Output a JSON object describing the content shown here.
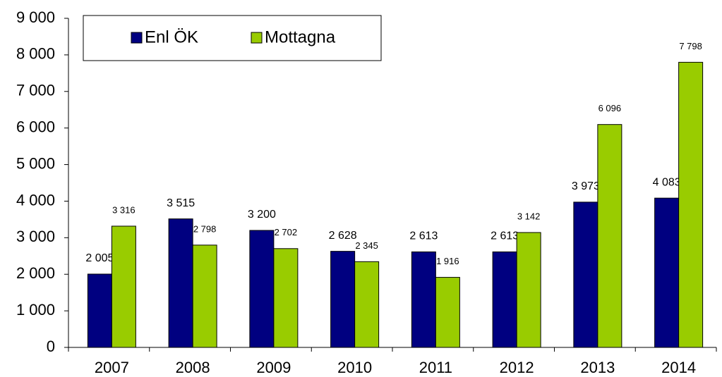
{
  "chart_data": {
    "type": "bar",
    "categories": [
      "2007",
      "2008",
      "2009",
      "2010",
      "2011",
      "2012",
      "2013",
      "2014"
    ],
    "series": [
      {
        "name": "Enl ÖK",
        "color": "#000080",
        "values": [
          2005,
          3515,
          3200,
          2628,
          2613,
          2613,
          3973,
          4083
        ],
        "value_labels": [
          "2 005",
          "3 515",
          "3 200",
          "2 628",
          "2 613",
          "2 613",
          "3 973",
          "4 083"
        ]
      },
      {
        "name": "Mottagna",
        "color": "#99cc00",
        "values": [
          3316,
          2798,
          2702,
          2345,
          1916,
          3142,
          6096,
          7798
        ],
        "value_labels": [
          "3 316",
          "2 798",
          "2 702",
          "2 345",
          "1 916",
          "3 142",
          "6 096",
          "7 798"
        ]
      }
    ],
    "ylim": [
      0,
      9000
    ],
    "yticks": [
      {
        "value": 0,
        "label": "0"
      },
      {
        "value": 1000,
        "label": "1 000"
      },
      {
        "value": 2000,
        "label": "2 000"
      },
      {
        "value": 3000,
        "label": "3 000"
      },
      {
        "value": 4000,
        "label": "4 000"
      },
      {
        "value": 5000,
        "label": "5 000"
      },
      {
        "value": 6000,
        "label": "6 000"
      },
      {
        "value": 7000,
        "label": "7 000"
      },
      {
        "value": 8000,
        "label": "8 000"
      },
      {
        "value": 9000,
        "label": "9 000"
      }
    ],
    "legend": "top-left"
  }
}
